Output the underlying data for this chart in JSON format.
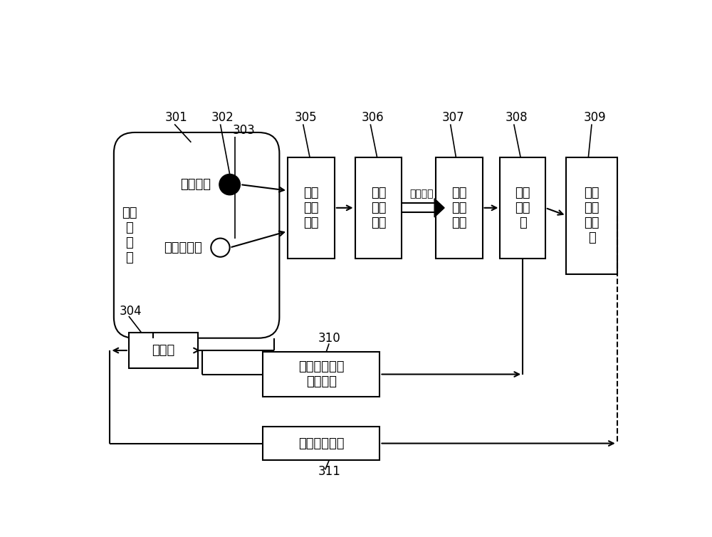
{
  "bg_color": "#ffffff",
  "lw": 1.5,
  "lw_ref": 1.2,
  "chamber_label": "潜水\n加\n压\n舶",
  "o2_label": "氧传感器",
  "ps_label": "压力传感器",
  "valve_label": "减压阀",
  "dc_label": "数据\n采集\n模块",
  "dt_label": "数据\n传输\n模块",
  "dr_label": "数据\n接收\n模块",
  "cpu_label": "中央\n处理\n器",
  "dis_label": "减压\n指令\n提示\n器",
  "env_label": "环境控制系统\n主控电脑",
  "opr_label": "减压操作人员",
  "sig_label": "传输信号",
  "xlim": [
    0,
    10
  ],
  "ylim": [
    0,
    7.54
  ],
  "figw": 10.0,
  "figh": 7.54,
  "dpi": 100,
  "chamber": [
    0.45,
    2.55,
    3.0,
    3.75
  ],
  "o2": [
    2.55,
    5.35,
    0.19
  ],
  "ps": [
    2.38,
    4.2,
    0.17
  ],
  "valve": [
    0.72,
    2.0,
    1.25,
    0.65
  ],
  "dc": [
    3.6,
    4.0,
    0.85,
    1.85
  ],
  "dt": [
    4.82,
    4.0,
    0.85,
    1.85
  ],
  "dr": [
    6.28,
    4.0,
    0.85,
    1.85
  ],
  "cpu": [
    7.45,
    4.0,
    0.82,
    1.85
  ],
  "dis": [
    8.65,
    3.72,
    0.92,
    2.13
  ],
  "env": [
    3.15,
    1.48,
    2.12,
    0.82
  ],
  "opr": [
    3.15,
    0.32,
    2.12,
    0.62
  ],
  "font_size": 13,
  "ref_fs": 12,
  "sig_fs": 10
}
